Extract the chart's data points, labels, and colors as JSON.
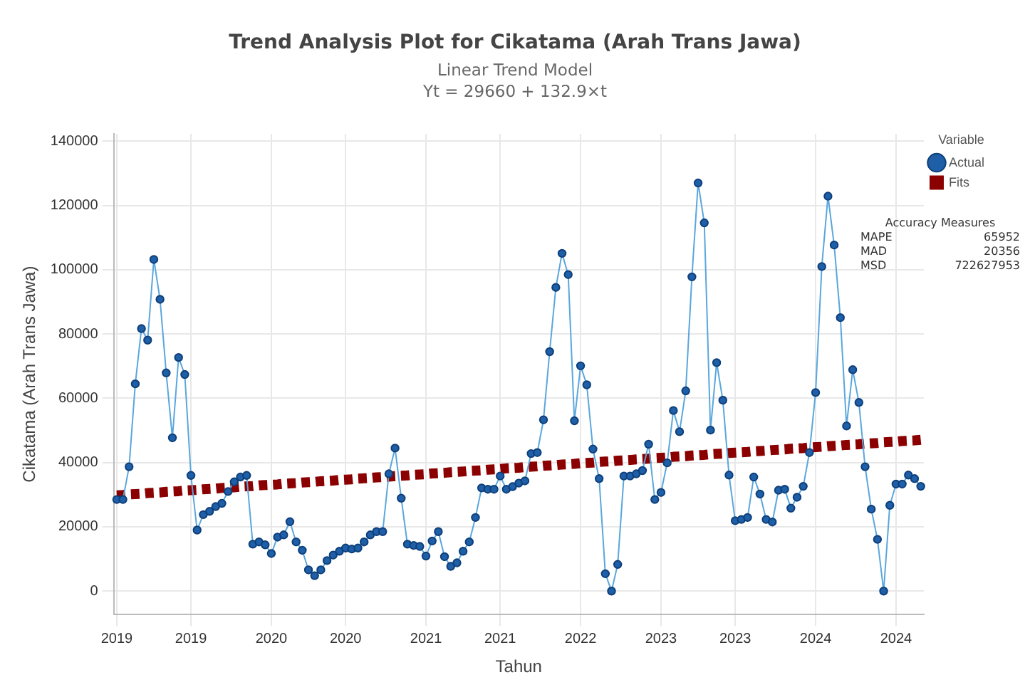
{
  "chart_data": {
    "type": "line",
    "title": "Trend Analysis Plot for Cikatama (Arah Trans Jawa)",
    "subtitle": "Linear Trend Model\nYt = 29660 + 132.9×t",
    "xlabel": "Tahun",
    "ylabel": "Cikatama (Arah Trans Jawa)",
    "legend_title": "Variable",
    "categories": [
      "2019",
      null,
      null,
      null,
      null,
      null,
      null,
      null,
      null,
      null,
      null,
      null,
      "2019",
      null,
      null,
      null,
      null,
      null,
      null,
      null,
      null,
      null,
      null,
      null,
      null,
      "2020",
      null,
      null,
      null,
      null,
      null,
      null,
      null,
      null,
      null,
      null,
      null,
      "2020",
      null,
      null,
      null,
      null,
      null,
      null,
      null,
      null,
      null,
      null,
      null,
      null,
      "2021",
      null,
      null,
      null,
      null,
      null,
      null,
      null,
      null,
      null,
      null,
      null,
      "2021",
      null,
      null,
      null,
      null,
      null,
      null,
      null,
      null,
      null,
      null,
      null,
      null,
      "2022",
      null,
      null,
      null,
      null,
      null,
      null,
      null,
      null,
      null,
      null,
      null,
      null,
      "2023",
      null,
      null,
      null,
      null,
      null,
      null,
      null,
      null,
      null,
      null,
      null,
      "2023",
      null,
      null,
      null,
      null,
      null,
      null,
      null,
      null,
      null,
      null,
      null,
      null,
      "2024",
      null,
      null,
      null,
      null,
      null,
      null,
      null,
      null,
      null,
      null,
      null,
      null,
      "2024",
      null,
      null,
      null,
      null
    ],
    "series": [
      {
        "name": "Actual",
        "color": "#1f5fa8",
        "marker": "circle",
        "line_style": "solid",
        "values": [
          28500,
          28500,
          38700,
          64500,
          81700,
          78100,
          103200,
          90800,
          67900,
          47700,
          72700,
          67400,
          36000,
          19000,
          23800,
          24800,
          26300,
          27300,
          31000,
          34000,
          35500,
          36000,
          14600,
          15300,
          14400,
          11700,
          16800,
          17500,
          21600,
          15300,
          12700,
          6600,
          4800,
          6600,
          9500,
          11200,
          12400,
          13400,
          13100,
          13400,
          15300,
          17500,
          18500,
          18500,
          36500,
          44500,
          28900,
          14600,
          14200,
          13900,
          10900,
          15600,
          18500,
          10700,
          7700,
          8800,
          12400,
          15300,
          22900,
          32100,
          31700,
          31700,
          35800,
          31700,
          32500,
          33600,
          34300,
          42800,
          43100,
          53300,
          74500,
          94500,
          105100,
          98500,
          53000,
          70100,
          64200,
          44200,
          35000,
          5400,
          0,
          8300,
          35800,
          35800,
          36500,
          37500,
          45700,
          28500,
          30700,
          39900,
          56200,
          49600,
          62300,
          97800,
          127000,
          114600,
          50100,
          71100,
          59400,
          36100,
          21900,
          22300,
          22900,
          35500,
          30200,
          22300,
          21500,
          31400,
          31700,
          25800,
          29200,
          32600,
          43100,
          61800,
          101000,
          122900,
          107700,
          85100,
          51400,
          68900,
          58700,
          38700,
          25500,
          16100,
          0,
          26700,
          33300,
          33300,
          36100,
          35000,
          32600
        ]
      },
      {
        "name": "Fits",
        "color": "#8b0000",
        "marker": "none",
        "line_style": "dashed",
        "values": [
          29800,
          29900,
          30100,
          30200,
          30300,
          30500,
          30600,
          30700,
          30900,
          31000,
          31100,
          31300,
          31400,
          31500,
          31700,
          31800,
          31900,
          32100,
          32200,
          32300,
          32500,
          32600,
          32700,
          32900,
          33000,
          33100,
          33200,
          33400,
          33500,
          33600,
          33800,
          33900,
          34000,
          34200,
          34300,
          34400,
          34600,
          34700,
          34800,
          35000,
          35100,
          35200,
          35400,
          35500,
          35600,
          35800,
          35900,
          36000,
          36200,
          36300,
          36400,
          36600,
          36700,
          36800,
          37000,
          37100,
          37200,
          37400,
          37500,
          37600,
          37800,
          37900,
          38000,
          38200,
          38300,
          38400,
          38600,
          38700,
          38800,
          39000,
          39100,
          39200,
          39400,
          39500,
          39600,
          39800,
          39900,
          40000,
          40200,
          40300,
          40400,
          40600,
          40700,
          40800,
          41000,
          41100,
          41200,
          41400,
          41500,
          41600,
          41800,
          41900,
          42000,
          42200,
          42300,
          42400,
          42600,
          42700,
          42800,
          43000,
          43100,
          43200,
          43300,
          43500,
          43600,
          43700,
          43900,
          44000,
          44100,
          44300,
          44400,
          44500,
          44700,
          44800,
          44900,
          45100,
          45200,
          45300,
          45500,
          45600,
          45700,
          45900,
          46000,
          46100,
          46300,
          46400,
          46500,
          46700,
          46800,
          46900,
          47100
        ]
      }
    ],
    "ylim": [
      -7300,
      142300
    ],
    "yticks": [
      0,
      20000,
      40000,
      60000,
      80000,
      100000,
      120000,
      140000
    ],
    "grid": true,
    "legend": "top right",
    "annotations": [
      "Accuracy Measures",
      "MAPE 65952",
      "MAD 20356",
      "MSD 722627953"
    ]
  }
}
